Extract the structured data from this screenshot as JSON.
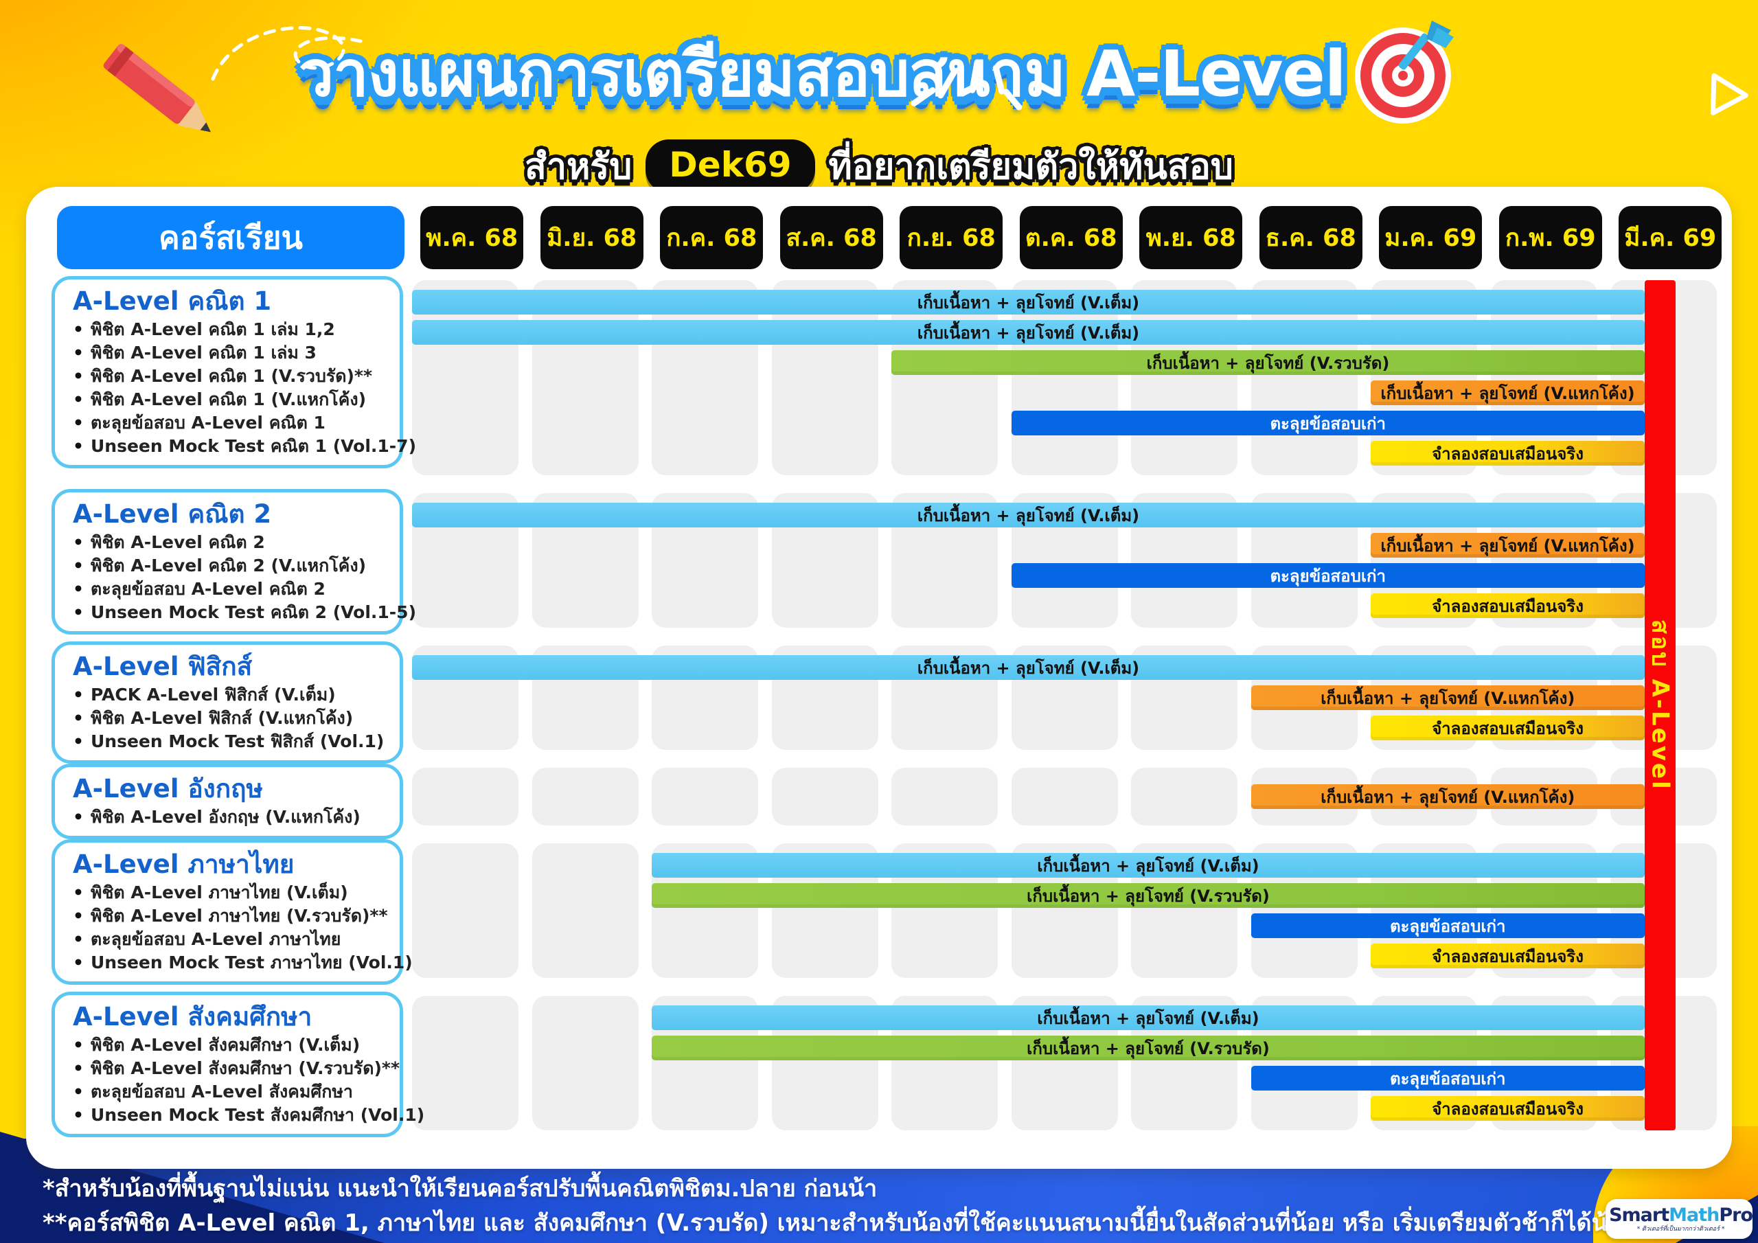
{
  "header": {
    "title": "วางแผนการเตรียมสอบสนาม A-Level",
    "subtitle_prefix": "สำหรับ",
    "subtitle_badge": "Dek69",
    "subtitle_suffix": "ที่อยากเตรียมตัวให้ทันสอบ"
  },
  "chart_data": {
    "type": "bar",
    "variant": "gantt-timeline",
    "column_header": "คอร์สเรียน",
    "x_categories": [
      "พ.ค. 68",
      "มิ.ย. 68",
      "ก.ค. 68",
      "ส.ค. 68",
      "ก.ย. 68",
      "ต.ค. 68",
      "พ.ย. 68",
      "ธ.ค. 68",
      "ม.ค. 69",
      "ก.พ. 69",
      "มี.ค. 69"
    ],
    "exam_marker": {
      "label": "สอบ A-Level",
      "position": "มี.ค. 69",
      "color": "#FA0505",
      "text_color": "#FFE60A"
    },
    "bar_palette": {
      "sky": "#5BC8F3",
      "green": "#8DC63F",
      "orange": "#F78C1E",
      "blue": "#0667E5",
      "yellow": "#FFE603"
    },
    "sections": [
      {
        "title": "A-Level คณิต 1",
        "courses": [
          "พิชิต A-Level คณิต 1 เล่ม 1,2",
          "พิชิต A-Level คณิต 1 เล่ม 3",
          "พิชิต A-Level คณิต 1 (V.รวบรัด)**",
          "พิชิต A-Level คณิต 1 (V.แหกโค้ง)",
          "ตะลุยข้อสอบ A-Level คณิต 1",
          "Unseen Mock Test คณิต 1 (Vol.1-7)"
        ],
        "bars": [
          {
            "label": "เก็บเนื้อหา + ลุยโจทย์ (V.เต็ม)",
            "start": "พ.ค. 68",
            "start_index": 0,
            "end": "สอบ A-Level",
            "color": "sky"
          },
          {
            "label": "เก็บเนื้อหา + ลุยโจทย์ (V.เต็ม)",
            "start": "พ.ค. 68",
            "start_index": 0,
            "end": "สอบ A-Level",
            "color": "sky"
          },
          {
            "label": "เก็บเนื้อหา + ลุยโจทย์ (V.รวบรัด)",
            "start": "ก.ย. 68",
            "start_index": 4,
            "end": "สอบ A-Level",
            "color": "green"
          },
          {
            "label": "เก็บเนื้อหา + ลุยโจทย์ (V.แหกโค้ง)",
            "start": "ม.ค. 69",
            "start_index": 8,
            "end": "สอบ A-Level",
            "color": "orange"
          },
          {
            "label": "ตะลุยข้อสอบเก่า",
            "start": "ต.ค. 68",
            "start_index": 5,
            "end": "สอบ A-Level",
            "color": "blue"
          },
          {
            "label": "จำลองสอบเสมือนจริง",
            "start": "ม.ค. 69",
            "start_index": 8,
            "end": "สอบ A-Level",
            "color": "yellow"
          }
        ]
      },
      {
        "title": "A-Level คณิต 2",
        "courses": [
          "พิชิต A-Level คณิต 2",
          "พิชิต A-Level คณิต 2 (V.แหกโค้ง)",
          "ตะลุยข้อสอบ A-Level คณิต 2",
          "Unseen Mock Test คณิต 2 (Vol.1-5)"
        ],
        "bars": [
          {
            "label": "เก็บเนื้อหา + ลุยโจทย์ (V.เต็ม)",
            "start": "พ.ค. 68",
            "start_index": 0,
            "end": "สอบ A-Level",
            "color": "sky"
          },
          {
            "label": "เก็บเนื้อหา + ลุยโจทย์ (V.แหกโค้ง)",
            "start": "ม.ค. 69",
            "start_index": 8,
            "end": "สอบ A-Level",
            "color": "orange"
          },
          {
            "label": "ตะลุยข้อสอบเก่า",
            "start": "ต.ค. 68",
            "start_index": 5,
            "end": "สอบ A-Level",
            "color": "blue"
          },
          {
            "label": "จำลองสอบเสมือนจริง",
            "start": "ม.ค. 69",
            "start_index": 8,
            "end": "สอบ A-Level",
            "color": "yellow"
          }
        ]
      },
      {
        "title": "A-Level ฟิสิกส์",
        "courses": [
          "PACK A-Level ฟิสิกส์ (V.เต็ม)",
          "พิชิต A-Level ฟิสิกส์ (V.แหกโค้ง)",
          "Unseen Mock Test ฟิสิกส์ (Vol.1)"
        ],
        "bars": [
          {
            "label": "เก็บเนื้อหา + ลุยโจทย์ (V.เต็ม)",
            "start": "พ.ค. 68",
            "start_index": 0,
            "end": "สอบ A-Level",
            "color": "sky"
          },
          {
            "label": "เก็บเนื้อหา + ลุยโจทย์ (V.แหกโค้ง)",
            "start": "ธ.ค. 68",
            "start_index": 7,
            "end": "สอบ A-Level",
            "color": "orange"
          },
          {
            "label": "จำลองสอบเสมือนจริง",
            "start": "ม.ค. 69",
            "start_index": 8,
            "end": "สอบ A-Level",
            "color": "yellow"
          }
        ]
      },
      {
        "title": "A-Level อังกฤษ",
        "courses": [
          "พิชิต A-Level อังกฤษ (V.แหกโค้ง)"
        ],
        "bars": [
          {
            "label": "เก็บเนื้อหา + ลุยโจทย์ (V.แหกโค้ง)",
            "start": "ธ.ค. 68",
            "start_index": 7,
            "end": "สอบ A-Level",
            "color": "orange"
          }
        ]
      },
      {
        "title": "A-Level ภาษาไทย",
        "courses": [
          "พิชิต A-Level ภาษาไทย (V.เต็ม)",
          "พิชิต A-Level ภาษาไทย (V.รวบรัด)**",
          "ตะลุยข้อสอบ A-Level ภาษาไทย",
          "Unseen Mock Test ภาษาไทย (Vol.1)"
        ],
        "bars": [
          {
            "label": "เก็บเนื้อหา + ลุยโจทย์ (V.เต็ม)",
            "start": "ก.ค. 68",
            "start_index": 2,
            "end": "สอบ A-Level",
            "color": "sky"
          },
          {
            "label": "เก็บเนื้อหา + ลุยโจทย์ (V.รวบรัด)",
            "start": "ก.ค. 68",
            "start_index": 2,
            "end": "สอบ A-Level",
            "color": "green"
          },
          {
            "label": "ตะลุยข้อสอบเก่า",
            "start": "ธ.ค. 68",
            "start_index": 7,
            "end": "สอบ A-Level",
            "color": "blue"
          },
          {
            "label": "จำลองสอบเสมือนจริง",
            "start": "ม.ค. 69",
            "start_index": 8,
            "end": "สอบ A-Level",
            "color": "yellow"
          }
        ]
      },
      {
        "title": "A-Level สังคมศึกษา",
        "courses": [
          "พิชิต A-Level สังคมศึกษา (V.เต็ม)",
          "พิชิต A-Level สังคมศึกษา (V.รวบรัด)**",
          "ตะลุยข้อสอบ A-Level สังคมศึกษา",
          "Unseen Mock Test สังคมศึกษา (Vol.1)"
        ],
        "bars": [
          {
            "label": "เก็บเนื้อหา + ลุยโจทย์ (V.เต็ม)",
            "start": "ก.ค. 68",
            "start_index": 2,
            "end": "สอบ A-Level",
            "color": "sky"
          },
          {
            "label": "เก็บเนื้อหา + ลุยโจทย์ (V.รวบรัด)",
            "start": "ก.ค. 68",
            "start_index": 2,
            "end": "สอบ A-Level",
            "color": "green"
          },
          {
            "label": "ตะลุยข้อสอบเก่า",
            "start": "ธ.ค. 68",
            "start_index": 7,
            "end": "สอบ A-Level",
            "color": "blue"
          },
          {
            "label": "จำลองสอบเสมือนจริง",
            "start": "ม.ค. 69",
            "start_index": 8,
            "end": "สอบ A-Level",
            "color": "yellow"
          }
        ]
      }
    ]
  },
  "footnotes": {
    "line1_pre": "*สำหรับน้องที่พื้นฐานไม่แน่น แนะนำให้เรียน",
    "line1_bold": "คอร์สปรับพื้นคณิตพิชิตม.ปลาย",
    "line1_post": " ก่อนน้า",
    "line2": "**คอร์สพิชิต A-Level คณิต 1, ภาษาไทย และ สังคมศึกษา (V.รวบรัด) เหมาะสำหรับน้องที่ใช้คะแนนสนามนี้ยื่นในสัดส่วนที่น้อย หรือ เริ่มเตรียมตัวช้าก็ได้น้า"
  },
  "logo": {
    "brand_smart": "Smart",
    "brand_math": "Math",
    "brand_pro": "Pro",
    "tagline": "* ติวเตอร์ที่เป็นมากกว่าติวเตอร์ *"
  }
}
